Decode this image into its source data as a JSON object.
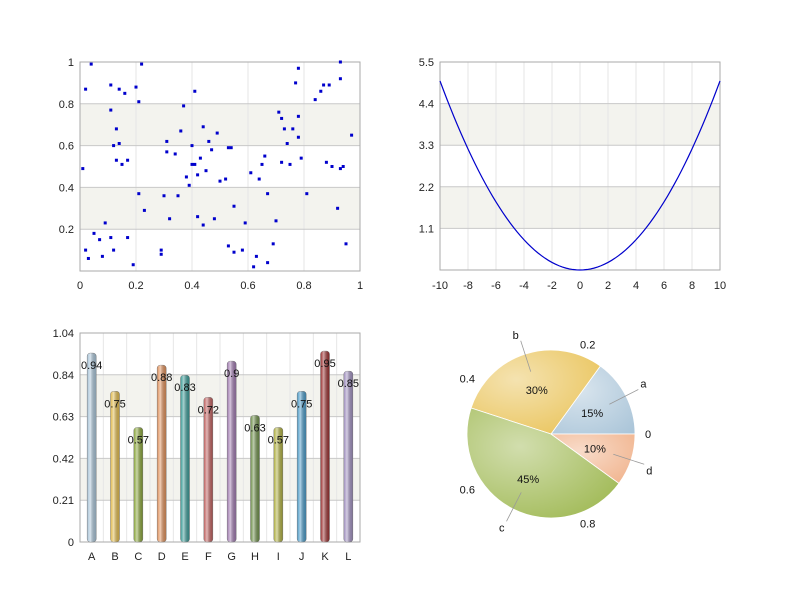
{
  "chart_data": [
    {
      "type": "scatter",
      "xlim": [
        0,
        1
      ],
      "ylim": [
        0,
        1
      ],
      "xticks": [
        "0",
        "0.2",
        "0.4",
        "0.6",
        "0.8",
        "1"
      ],
      "yticks": [
        "0.2",
        "0.4",
        "0.6",
        "0.8",
        "1"
      ],
      "color": "#0000cc",
      "points": [
        [
          0.01,
          0.49
        ],
        [
          0.02,
          0.87
        ],
        [
          0.02,
          0.1
        ],
        [
          0.03,
          0.06
        ],
        [
          0.04,
          0.99
        ],
        [
          0.05,
          0.18
        ],
        [
          0.07,
          0.15
        ],
        [
          0.08,
          0.07
        ],
        [
          0.09,
          0.23
        ],
        [
          0.11,
          0.89
        ],
        [
          0.11,
          0.77
        ],
        [
          0.11,
          0.16
        ],
        [
          0.12,
          0.1
        ],
        [
          0.12,
          0.6
        ],
        [
          0.13,
          0.68
        ],
        [
          0.13,
          0.53
        ],
        [
          0.14,
          0.61
        ],
        [
          0.14,
          0.87
        ],
        [
          0.15,
          0.51
        ],
        [
          0.16,
          0.85
        ],
        [
          0.17,
          0.53
        ],
        [
          0.17,
          0.16
        ],
        [
          0.19,
          0.03
        ],
        [
          0.2,
          0.88
        ],
        [
          0.21,
          0.81
        ],
        [
          0.21,
          0.37
        ],
        [
          0.22,
          0.99
        ],
        [
          0.23,
          0.29
        ],
        [
          0.29,
          0.1
        ],
        [
          0.29,
          0.08
        ],
        [
          0.3,
          0.36
        ],
        [
          0.31,
          0.57
        ],
        [
          0.31,
          0.62
        ],
        [
          0.32,
          0.25
        ],
        [
          0.34,
          0.56
        ],
        [
          0.35,
          0.36
        ],
        [
          0.36,
          0.67
        ],
        [
          0.37,
          0.79
        ],
        [
          0.38,
          0.45
        ],
        [
          0.39,
          0.41
        ],
        [
          0.4,
          0.6
        ],
        [
          0.4,
          0.51
        ],
        [
          0.41,
          0.51
        ],
        [
          0.41,
          0.86
        ],
        [
          0.42,
          0.26
        ],
        [
          0.42,
          0.46
        ],
        [
          0.43,
          0.54
        ],
        [
          0.44,
          0.69
        ],
        [
          0.44,
          0.22
        ],
        [
          0.45,
          0.48
        ],
        [
          0.46,
          0.62
        ],
        [
          0.47,
          0.58
        ],
        [
          0.48,
          0.25
        ],
        [
          0.49,
          0.66
        ],
        [
          0.5,
          0.43
        ],
        [
          0.52,
          0.44
        ],
        [
          0.53,
          0.59
        ],
        [
          0.53,
          0.12
        ],
        [
          0.54,
          0.59
        ],
        [
          0.55,
          0.31
        ],
        [
          0.55,
          0.09
        ],
        [
          0.58,
          0.1
        ],
        [
          0.59,
          0.23
        ],
        [
          0.61,
          0.47
        ],
        [
          0.62,
          0.02
        ],
        [
          0.63,
          0.07
        ],
        [
          0.64,
          0.44
        ],
        [
          0.65,
          0.51
        ],
        [
          0.66,
          0.55
        ],
        [
          0.67,
          0.37
        ],
        [
          0.67,
          0.04
        ],
        [
          0.69,
          0.13
        ],
        [
          0.7,
          0.24
        ],
        [
          0.71,
          0.76
        ],
        [
          0.72,
          0.52
        ],
        [
          0.72,
          0.73
        ],
        [
          0.73,
          0.68
        ],
        [
          0.74,
          0.61
        ],
        [
          0.75,
          0.51
        ],
        [
          0.76,
          0.68
        ],
        [
          0.77,
          0.9
        ],
        [
          0.78,
          0.97
        ],
        [
          0.78,
          0.64
        ],
        [
          0.78,
          0.74
        ],
        [
          0.79,
          0.54
        ],
        [
          0.81,
          0.37
        ],
        [
          0.84,
          0.82
        ],
        [
          0.86,
          0.86
        ],
        [
          0.87,
          0.89
        ],
        [
          0.88,
          0.52
        ],
        [
          0.89,
          0.89
        ],
        [
          0.9,
          0.5
        ],
        [
          0.92,
          0.3
        ],
        [
          0.93,
          0.92
        ],
        [
          0.93,
          1.0
        ],
        [
          0.93,
          0.49
        ],
        [
          0.94,
          0.5
        ],
        [
          0.95,
          0.13
        ],
        [
          0.97,
          0.65
        ]
      ]
    },
    {
      "type": "line",
      "xlim": [
        -10,
        10
      ],
      "ylim": [
        0,
        5.5
      ],
      "xticks": [
        "-10",
        "-8",
        "-6",
        "-4",
        "-2",
        "0",
        "2",
        "4",
        "6",
        "8",
        "10"
      ],
      "yticks": [
        "1.1",
        "2.2",
        "3.3",
        "4.4",
        "5.5"
      ],
      "function": "y = 0.05 * x^2",
      "color": "#0000cc"
    },
    {
      "type": "bar",
      "categories": [
        "A",
        "B",
        "C",
        "D",
        "E",
        "F",
        "G",
        "H",
        "I",
        "J",
        "K",
        "L"
      ],
      "values": [
        0.94,
        0.75,
        0.57,
        0.88,
        0.83,
        0.72,
        0.9,
        0.63,
        0.57,
        0.75,
        0.95,
        0.85
      ],
      "value_labels": [
        "0.94",
        "0.75",
        "0.57",
        "0.88",
        "0.83",
        "0.72",
        "0.9",
        "0.63",
        "0.57",
        "0.75",
        "0.95",
        "0.85"
      ],
      "ylim": [
        0,
        1.04
      ],
      "yticks": [
        "0",
        "0.21",
        "0.42",
        "0.63",
        "0.84",
        "1.04"
      ],
      "colors": [
        "#a9c4d8",
        "#e0b94a",
        "#8aa63a",
        "#e0905a",
        "#3a9a96",
        "#c0605e",
        "#a07ab0",
        "#6e8f4a",
        "#b0b040",
        "#4a9ac8",
        "#9a3030",
        "#a090c0"
      ]
    },
    {
      "type": "pie",
      "slices": [
        {
          "name": "a",
          "percent_label": "15%",
          "value": 0.15,
          "color": "#a9c4d8"
        },
        {
          "name": "b",
          "percent_label": "30%",
          "value": 0.3,
          "color": "#e8c050"
        },
        {
          "name": "c",
          "percent_label": "45%",
          "value": 0.45,
          "color": "#9ab54a"
        },
        {
          "name": "d",
          "percent_label": "10%",
          "value": 0.1,
          "color": "#f0b088"
        }
      ],
      "rim_labels": [
        "0",
        "0.2",
        "0.4",
        "0.6",
        "0.8"
      ]
    }
  ]
}
